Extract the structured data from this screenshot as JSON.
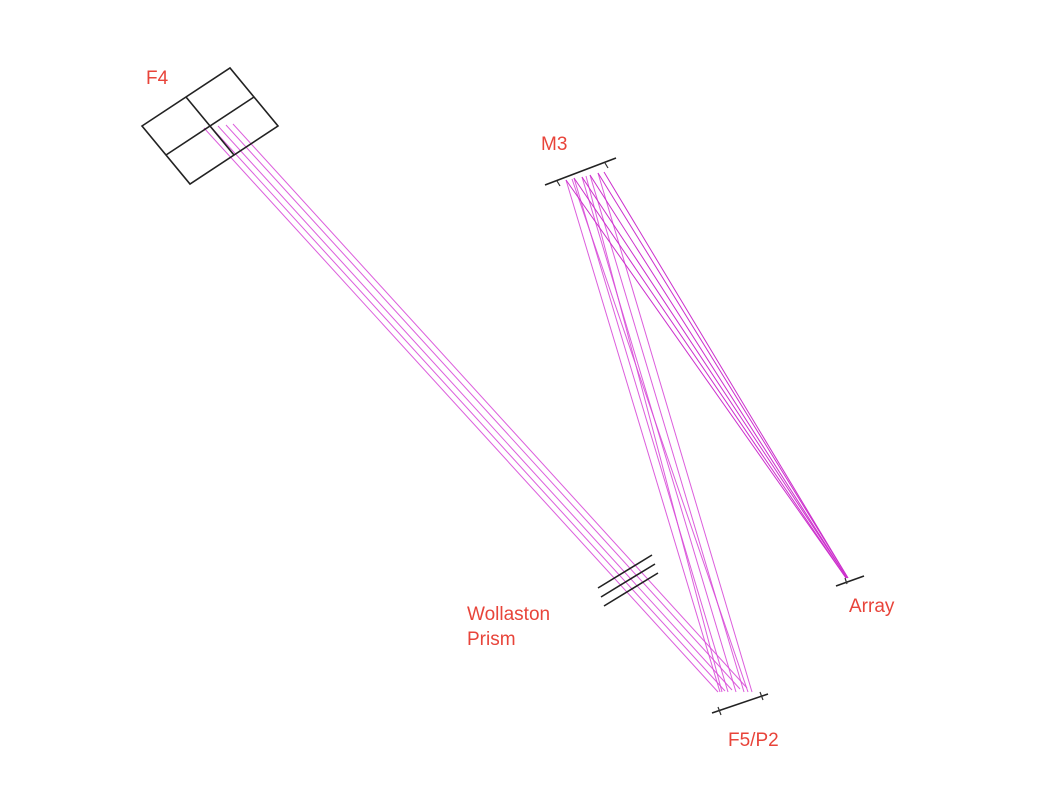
{
  "labels": {
    "f4": "F4",
    "m3": "M3",
    "wollaston_line1": "Wollaston",
    "wollaston_line2": "Prism",
    "array": "Array",
    "f5p2": "F5/P2"
  },
  "colors": {
    "label": "#e8443a",
    "ray": "#d84bd8",
    "element": "#222222"
  }
}
